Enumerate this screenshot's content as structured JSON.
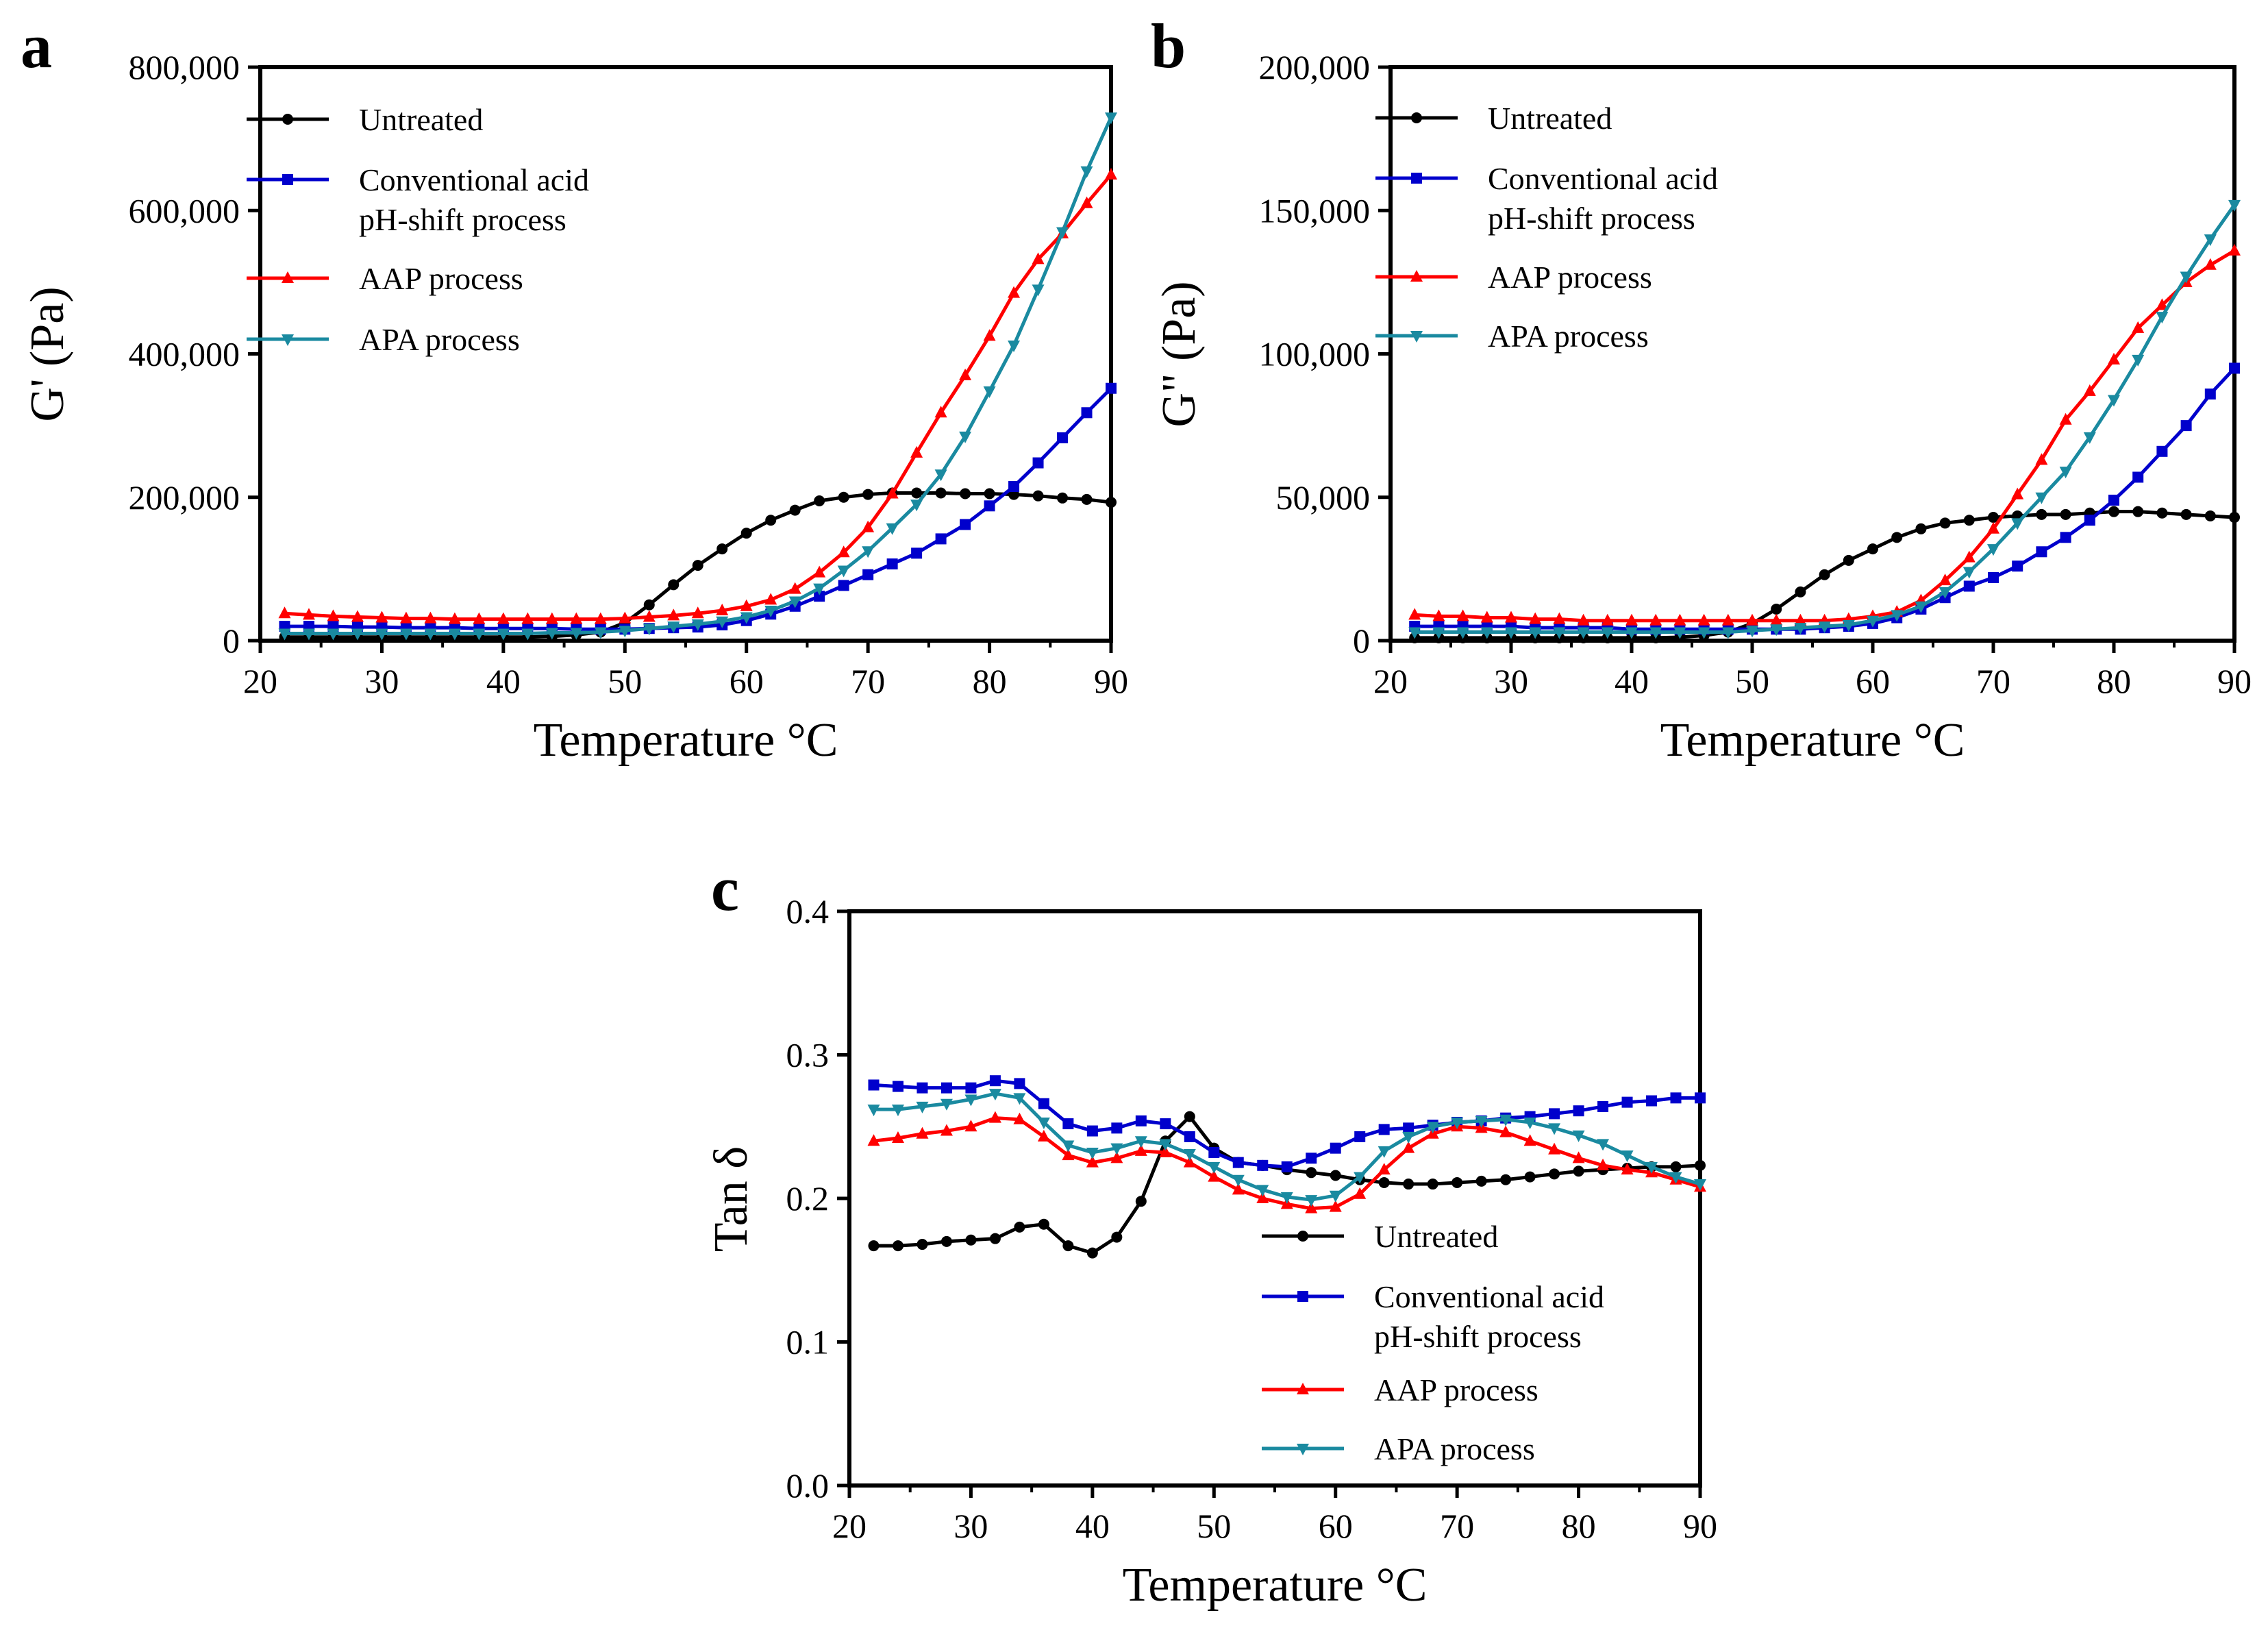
{
  "chart_data": [
    {
      "panel": "a",
      "type": "line",
      "ylabel": "G' (Pa)",
      "xlabel": "Temperature °C",
      "xlim": [
        20,
        90
      ],
      "ylim": [
        0,
        800000
      ],
      "xticks": [
        20,
        30,
        40,
        50,
        60,
        70,
        80,
        90
      ],
      "yticks": [
        0,
        200000,
        400000,
        600000,
        800000
      ],
      "ytick_labels": [
        "0",
        "200,000",
        "400,000",
        "600,000",
        "800,000"
      ],
      "legend_position": "top-left",
      "x": [
        22,
        24,
        26,
        28,
        30,
        32,
        34,
        36,
        38,
        40,
        42,
        44,
        46,
        48,
        50,
        52,
        54,
        56,
        58,
        60,
        62,
        64,
        66,
        68,
        70,
        72,
        74,
        76,
        78,
        80,
        82,
        84,
        86,
        88,
        90
      ],
      "series": [
        {
          "name": "Untreated",
          "color": "#000000",
          "marker": "circle",
          "values": [
            5000,
            5000,
            5000,
            5000,
            5000,
            5000,
            5000,
            5000,
            5000,
            5000,
            5000,
            6000,
            8000,
            12000,
            25000,
            50000,
            78000,
            105000,
            128000,
            150000,
            168000,
            182000,
            195000,
            200000,
            204000,
            206000,
            206000,
            206000,
            205000,
            205000,
            204000,
            202000,
            199000,
            197000,
            193000
          ]
        },
        {
          "name": "Conventional acid\npH-shift process",
          "color": "#0000cc",
          "marker": "square",
          "values": [
            20000,
            20000,
            20000,
            19000,
            19000,
            18000,
            18000,
            18000,
            17000,
            17000,
            17000,
            17000,
            16000,
            16000,
            16000,
            17000,
            18000,
            19000,
            22000,
            28000,
            37000,
            48000,
            62000,
            77000,
            92000,
            107000,
            122000,
            142000,
            162000,
            188000,
            215000,
            248000,
            283000,
            318000,
            352000
          ]
        },
        {
          "name": "AAP process",
          "color": "#ff0000",
          "marker": "triangle-up",
          "values": [
            38000,
            36000,
            34000,
            33000,
            32000,
            31000,
            31000,
            30000,
            30000,
            30000,
            30000,
            30000,
            30000,
            30000,
            31000,
            33000,
            35000,
            38000,
            42000,
            48000,
            57000,
            72000,
            95000,
            123000,
            158000,
            205000,
            262000,
            318000,
            370000,
            425000,
            485000,
            532000,
            568000,
            610000,
            650000
          ]
        },
        {
          "name": "APA process",
          "color": "#1a8aa0",
          "marker": "triangle-down",
          "values": [
            10000,
            10000,
            10000,
            10000,
            10000,
            10000,
            10000,
            10000,
            10000,
            10000,
            10000,
            11000,
            11000,
            12000,
            14000,
            17000,
            20000,
            23000,
            27000,
            33000,
            42000,
            55000,
            73000,
            98000,
            125000,
            157000,
            190000,
            232000,
            285000,
            348000,
            412000,
            490000,
            570000,
            655000,
            730000
          ]
        }
      ]
    },
    {
      "panel": "b",
      "type": "line",
      "ylabel": "G\" (Pa)",
      "xlabel": "Temperature °C",
      "xlim": [
        20,
        90
      ],
      "ylim": [
        0,
        200000
      ],
      "xticks": [
        20,
        30,
        40,
        50,
        60,
        70,
        80,
        90
      ],
      "yticks": [
        0,
        50000,
        100000,
        150000,
        200000
      ],
      "ytick_labels": [
        "0",
        "50,000",
        "100,000",
        "150,000",
        "200,000"
      ],
      "legend_position": "top-left",
      "x": [
        22,
        24,
        26,
        28,
        30,
        32,
        34,
        36,
        38,
        40,
        42,
        44,
        46,
        48,
        50,
        52,
        54,
        56,
        58,
        60,
        62,
        64,
        66,
        68,
        70,
        72,
        74,
        76,
        78,
        80,
        82,
        84,
        86,
        88,
        90
      ],
      "series": [
        {
          "name": "Untreated",
          "color": "#000000",
          "marker": "circle",
          "values": [
            1000,
            1000,
            1000,
            1000,
            1000,
            1000,
            1000,
            1000,
            1000,
            1000,
            1000,
            1200,
            1800,
            3000,
            6000,
            11000,
            17000,
            23000,
            28000,
            32000,
            36000,
            39000,
            41000,
            42000,
            43000,
            43500,
            44000,
            44000,
            44500,
            45000,
            45000,
            44500,
            44000,
            43500,
            43000
          ]
        },
        {
          "name": "Conventional acid\npH-shift process",
          "color": "#0000cc",
          "marker": "square",
          "values": [
            5000,
            5000,
            5000,
            5000,
            5000,
            4500,
            4500,
            4500,
            4500,
            4000,
            4000,
            4000,
            4000,
            4000,
            4000,
            4000,
            4000,
            4500,
            5000,
            6000,
            8000,
            11000,
            15000,
            19000,
            22000,
            26000,
            31000,
            36000,
            42000,
            49000,
            57000,
            66000,
            75000,
            86000,
            95000
          ]
        },
        {
          "name": "AAP process",
          "color": "#ff0000",
          "marker": "triangle-up",
          "values": [
            9000,
            8500,
            8500,
            8000,
            8000,
            7500,
            7500,
            7000,
            7000,
            7000,
            7000,
            7000,
            7000,
            7000,
            7000,
            7000,
            7000,
            7000,
            7500,
            8500,
            10000,
            14000,
            21000,
            29000,
            39000,
            51000,
            63000,
            77000,
            87000,
            98000,
            109000,
            117000,
            125000,
            131000,
            136000
          ]
        },
        {
          "name": "APA process",
          "color": "#1a8aa0",
          "marker": "triangle-down",
          "values": [
            3000,
            3000,
            3000,
            3000,
            3000,
            3000,
            3000,
            3000,
            3000,
            3000,
            3000,
            3000,
            3000,
            3000,
            3500,
            4000,
            4500,
            5000,
            5500,
            7000,
            9000,
            12000,
            17000,
            24000,
            32000,
            41000,
            50000,
            59000,
            71000,
            84000,
            98000,
            113000,
            127000,
            140000,
            152000
          ]
        }
      ]
    },
    {
      "panel": "c",
      "type": "line",
      "ylabel": "Tan δ",
      "xlabel": "Temperature °C",
      "xlim": [
        20,
        90
      ],
      "ylim": [
        0,
        0.4
      ],
      "xticks": [
        20,
        30,
        40,
        50,
        60,
        70,
        80,
        90
      ],
      "yticks": [
        0,
        0.1,
        0.2,
        0.3,
        0.4
      ],
      "ytick_labels": [
        "0.0",
        "0.1",
        "0.2",
        "0.3",
        "0.4"
      ],
      "legend_position": "bottom-right",
      "x": [
        22,
        24,
        26,
        28,
        30,
        32,
        34,
        36,
        38,
        40,
        42,
        44,
        46,
        48,
        50,
        52,
        54,
        56,
        58,
        60,
        62,
        64,
        66,
        68,
        70,
        72,
        74,
        76,
        78,
        80,
        82,
        84,
        86,
        88,
        90
      ],
      "series": [
        {
          "name": "Untreated",
          "color": "#000000",
          "marker": "circle",
          "values": [
            0.167,
            0.167,
            0.168,
            0.17,
            0.171,
            0.172,
            0.18,
            0.182,
            0.167,
            0.162,
            0.173,
            0.198,
            0.24,
            0.257,
            0.235,
            0.225,
            0.223,
            0.22,
            0.218,
            0.216,
            0.213,
            0.211,
            0.21,
            0.21,
            0.211,
            0.212,
            0.213,
            0.215,
            0.217,
            0.219,
            0.22,
            0.221,
            0.222,
            0.222,
            0.223
          ]
        },
        {
          "name": "Conventional acid\npH-shift process",
          "color": "#0000cc",
          "marker": "square",
          "values": [
            0.279,
            0.278,
            0.277,
            0.277,
            0.277,
            0.282,
            0.28,
            0.266,
            0.252,
            0.247,
            0.249,
            0.254,
            0.252,
            0.243,
            0.232,
            0.225,
            0.223,
            0.222,
            0.228,
            0.235,
            0.243,
            0.248,
            0.249,
            0.251,
            0.253,
            0.254,
            0.256,
            0.257,
            0.259,
            0.261,
            0.264,
            0.267,
            0.268,
            0.27,
            0.27
          ]
        },
        {
          "name": "AAP process",
          "color": "#ff0000",
          "marker": "triangle-up",
          "values": [
            0.24,
            0.242,
            0.245,
            0.247,
            0.25,
            0.256,
            0.255,
            0.243,
            0.23,
            0.225,
            0.228,
            0.233,
            0.232,
            0.225,
            0.215,
            0.206,
            0.2,
            0.196,
            0.193,
            0.194,
            0.203,
            0.22,
            0.235,
            0.245,
            0.25,
            0.249,
            0.246,
            0.24,
            0.234,
            0.228,
            0.223,
            0.22,
            0.218,
            0.213,
            0.208
          ]
        },
        {
          "name": "APA process",
          "color": "#1a8aa0",
          "marker": "triangle-down",
          "values": [
            0.262,
            0.262,
            0.264,
            0.266,
            0.269,
            0.273,
            0.27,
            0.253,
            0.237,
            0.232,
            0.235,
            0.24,
            0.238,
            0.231,
            0.222,
            0.213,
            0.206,
            0.201,
            0.199,
            0.202,
            0.215,
            0.233,
            0.243,
            0.25,
            0.253,
            0.254,
            0.255,
            0.253,
            0.249,
            0.244,
            0.238,
            0.23,
            0.222,
            0.215,
            0.21
          ]
        }
      ]
    }
  ]
}
